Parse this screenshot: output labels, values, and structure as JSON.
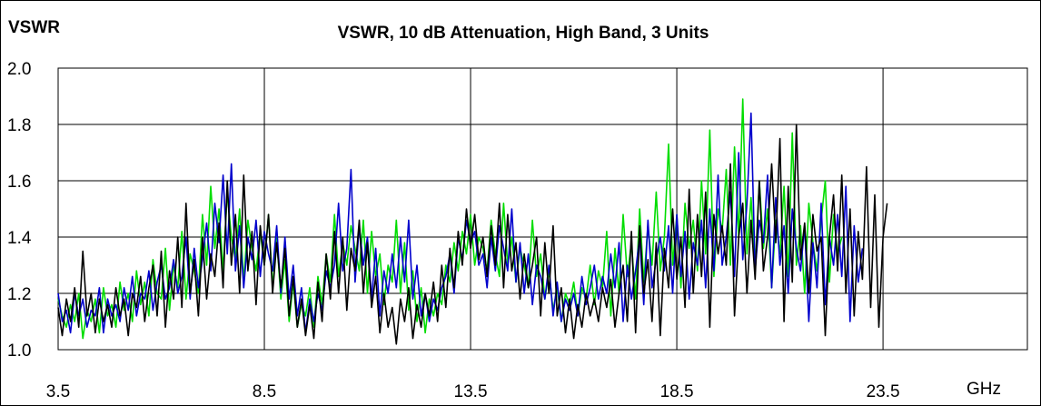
{
  "chart_data": {
    "type": "line",
    "title": "VSWR, 10 dB Attenuation, High Band, 3 Units",
    "ylabel": "VSWR",
    "xlabel": "GHz",
    "xlim": [
      3.5,
      27.0
    ],
    "ylim": [
      1.0,
      2.0
    ],
    "x_ticks": [
      "3.5",
      "8.5",
      "13.5",
      "18.5",
      "23.5"
    ],
    "y_ticks": [
      "1.0",
      "1.2",
      "1.4",
      "1.6",
      "1.8",
      "2.0"
    ],
    "grid": true,
    "legend": "none",
    "x_step_ghz": 0.1,
    "series": [
      {
        "color": "#000000",
        "values": [
          1.15,
          1.05,
          1.18,
          1.1,
          1.22,
          1.08,
          1.35,
          1.12,
          1.2,
          1.06,
          1.18,
          1.1,
          1.16,
          1.08,
          1.22,
          1.12,
          1.18,
          1.05,
          1.2,
          1.15,
          1.26,
          1.1,
          1.22,
          1.3,
          1.12,
          1.35,
          1.08,
          1.28,
          1.18,
          1.4,
          1.15,
          1.52,
          1.2,
          1.32,
          1.12,
          1.4,
          1.18,
          1.34,
          1.26,
          1.45,
          1.22,
          1.6,
          1.3,
          1.48,
          1.2,
          1.62,
          1.28,
          1.42,
          1.16,
          1.44,
          1.3,
          1.48,
          1.2,
          1.38,
          1.22,
          1.36,
          1.12,
          1.26,
          1.08,
          1.18,
          1.05,
          1.16,
          1.04,
          1.24,
          1.1,
          1.34,
          1.18,
          1.42,
          1.2,
          1.4,
          1.14,
          1.36,
          1.28,
          1.46,
          1.2,
          1.38,
          1.15,
          1.26,
          1.06,
          1.2,
          1.08,
          1.15,
          1.02,
          1.18,
          1.1,
          1.22,
          1.04,
          1.16,
          1.08,
          1.2,
          1.12,
          1.24,
          1.1,
          1.3,
          1.15,
          1.36,
          1.22,
          1.42,
          1.3,
          1.5,
          1.36,
          1.48,
          1.32,
          1.4,
          1.26,
          1.44,
          1.3,
          1.52,
          1.22,
          1.48,
          1.28,
          1.38,
          1.18,
          1.34,
          1.22,
          1.3,
          1.4,
          1.12,
          1.38,
          1.2,
          1.44,
          1.12,
          1.22,
          1.06,
          1.18,
          1.04,
          1.16,
          1.08,
          1.2,
          1.12,
          1.18,
          1.1,
          1.22,
          1.15,
          1.25,
          1.08,
          1.2,
          1.3,
          1.1,
          1.42,
          1.06,
          1.44,
          1.2,
          1.32,
          1.1,
          1.38,
          1.05,
          1.36,
          1.22,
          1.5,
          1.25,
          1.4,
          1.15,
          1.57,
          1.2,
          1.48,
          1.26,
          1.56,
          1.08,
          1.48,
          1.34,
          1.44,
          1.3,
          1.66,
          1.12,
          1.4,
          1.52,
          1.2,
          1.46,
          1.25,
          1.6,
          1.28,
          1.4,
          1.66,
          1.38,
          1.75,
          1.1,
          1.58,
          1.24,
          1.8,
          1.32,
          1.45,
          1.2,
          1.48,
          1.35,
          1.4,
          1.05,
          1.4,
          1.55,
          1.28,
          1.62,
          1.2,
          1.5,
          1.12,
          1.42,
          1.25,
          1.65,
          1.15,
          1.55,
          1.08,
          1.4,
          1.52
        ]
      },
      {
        "color": "#0000cc",
        "values": [
          1.2,
          1.1,
          1.14,
          1.06,
          1.2,
          1.12,
          1.18,
          1.08,
          1.14,
          1.12,
          1.22,
          1.06,
          1.18,
          1.12,
          1.16,
          1.1,
          1.22,
          1.14,
          1.26,
          1.12,
          1.2,
          1.18,
          1.28,
          1.14,
          1.24,
          1.3,
          1.18,
          1.22,
          1.32,
          1.2,
          1.26,
          1.4,
          1.18,
          1.36,
          1.22,
          1.32,
          1.45,
          1.28,
          1.52,
          1.38,
          1.62,
          1.34,
          1.66,
          1.28,
          1.44,
          1.22,
          1.4,
          1.32,
          1.46,
          1.26,
          1.42,
          1.34,
          1.28,
          1.44,
          1.2,
          1.4,
          1.18,
          1.3,
          1.12,
          1.22,
          1.06,
          1.18,
          1.1,
          1.2,
          1.14,
          1.28,
          1.22,
          1.3,
          1.52,
          1.28,
          1.36,
          1.64,
          1.24,
          1.44,
          1.3,
          1.4,
          1.18,
          1.36,
          1.12,
          1.28,
          1.2,
          1.34,
          1.22,
          1.4,
          1.24,
          1.46,
          1.18,
          1.3,
          1.12,
          1.2,
          1.1,
          1.18,
          1.14,
          1.22,
          1.26,
          1.34,
          1.2,
          1.4,
          1.32,
          1.46,
          1.38,
          1.42,
          1.3,
          1.34,
          1.22,
          1.4,
          1.28,
          1.44,
          1.36,
          1.28,
          1.5,
          1.24,
          1.38,
          1.2,
          1.34,
          1.16,
          1.3,
          1.26,
          1.18,
          1.3,
          1.12,
          1.24,
          1.1,
          1.18,
          1.14,
          1.2,
          1.12,
          1.26,
          1.16,
          1.22,
          1.3,
          1.18,
          1.26,
          1.2,
          1.34,
          1.22,
          1.38,
          1.1,
          1.3,
          1.18,
          1.28,
          1.4,
          1.16,
          1.46,
          1.22,
          1.32,
          1.4,
          1.28,
          1.44,
          1.2,
          1.48,
          1.26,
          1.42,
          1.18,
          1.38,
          1.3,
          1.46,
          1.22,
          1.5,
          1.28,
          1.62,
          1.3,
          1.4,
          1.56,
          1.26,
          1.7,
          1.32,
          1.52,
          1.84,
          1.28,
          1.46,
          1.38,
          1.62,
          1.22,
          1.54,
          1.3,
          1.44,
          1.2,
          1.5,
          1.36,
          1.28,
          1.44,
          1.1,
          1.38,
          1.22,
          1.52,
          1.16,
          1.4,
          1.3,
          1.48,
          1.26,
          1.58,
          1.1,
          1.44,
          1.24,
          1.36
        ]
      },
      {
        "color": "#00dd00",
        "values": [
          1.18,
          1.12,
          1.08,
          1.16,
          1.1,
          1.2,
          1.04,
          1.14,
          1.1,
          1.18,
          1.06,
          1.22,
          1.12,
          1.16,
          1.08,
          1.24,
          1.14,
          1.2,
          1.1,
          1.28,
          1.16,
          1.24,
          1.12,
          1.32,
          1.2,
          1.18,
          1.36,
          1.14,
          1.3,
          1.22,
          1.42,
          1.18,
          1.34,
          1.28,
          1.2,
          1.48,
          1.3,
          1.58,
          1.36,
          1.5,
          1.28,
          1.56,
          1.4,
          1.32,
          1.5,
          1.24,
          1.46,
          1.36,
          1.28,
          1.42,
          1.3,
          1.48,
          1.22,
          1.4,
          1.18,
          1.32,
          1.1,
          1.24,
          1.08,
          1.16,
          1.12,
          1.22,
          1.08,
          1.26,
          1.16,
          1.34,
          1.24,
          1.48,
          1.26,
          1.38,
          1.3,
          1.44,
          1.36,
          1.28,
          1.46,
          1.2,
          1.42,
          1.26,
          1.34,
          1.16,
          1.3,
          1.24,
          1.46,
          1.2,
          1.38,
          1.14,
          1.28,
          1.1,
          1.22,
          1.06,
          1.18,
          1.12,
          1.2,
          1.16,
          1.3,
          1.24,
          1.38,
          1.28,
          1.42,
          1.34,
          1.48,
          1.3,
          1.4,
          1.36,
          1.28,
          1.46,
          1.34,
          1.26,
          1.52,
          1.3,
          1.4,
          1.24,
          1.36,
          1.3,
          1.22,
          1.46,
          1.26,
          1.34,
          1.18,
          1.28,
          1.14,
          1.22,
          1.1,
          1.2,
          1.16,
          1.24,
          1.12,
          1.22,
          1.18,
          1.3,
          1.16,
          1.28,
          1.22,
          1.42,
          1.12,
          1.36,
          1.2,
          1.48,
          1.26,
          1.38,
          1.18,
          1.5,
          1.24,
          1.44,
          1.3,
          1.56,
          1.28,
          1.4,
          1.73,
          1.3,
          1.48,
          1.22,
          1.52,
          1.36,
          1.46,
          1.28,
          1.6,
          1.34,
          1.78,
          1.26,
          1.5,
          1.42,
          1.64,
          1.3,
          1.72,
          1.4,
          1.89,
          1.34,
          1.54,
          1.28,
          1.6,
          1.36,
          1.5,
          1.22,
          1.46,
          1.34,
          1.58,
          1.26,
          1.77,
          1.3,
          1.44,
          1.2,
          1.52,
          1.38,
          1.28,
          1.46,
          1.6,
          1.24,
          1.48,
          1.34,
          1.4
        ]
      }
    ]
  }
}
